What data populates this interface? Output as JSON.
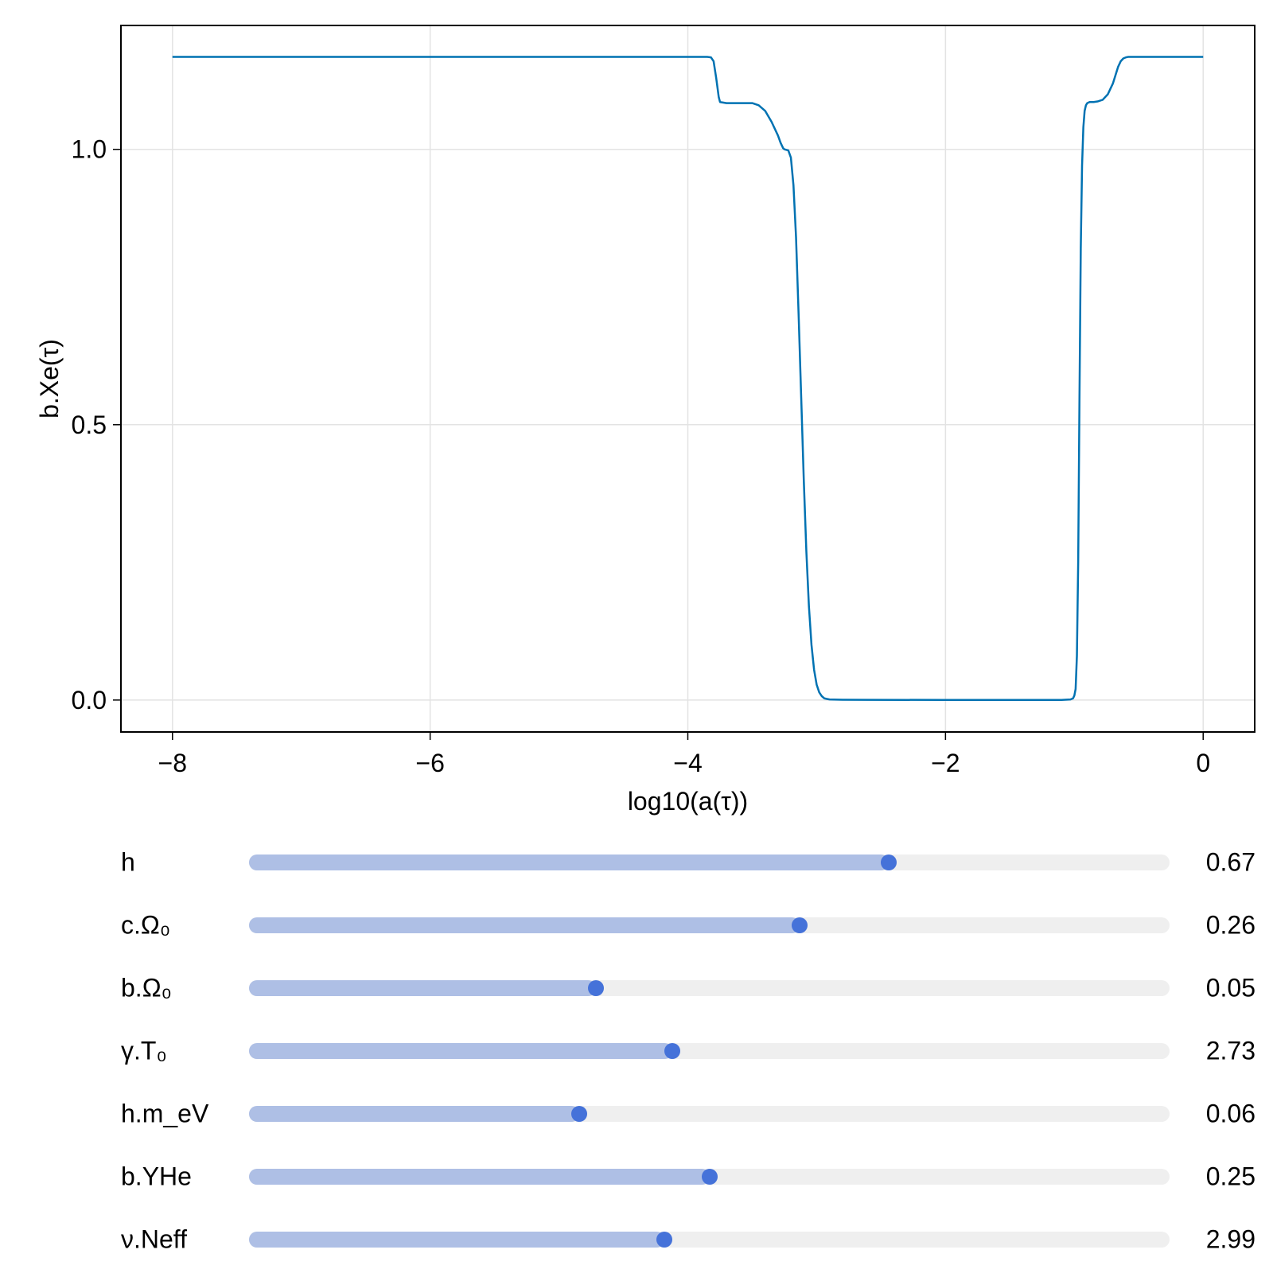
{
  "chart_data": {
    "type": "line",
    "xlabel": "log10(a(τ))",
    "ylabel": "b.Xe(τ)",
    "xlim": [
      -8.4,
      0.4
    ],
    "ylim": [
      -0.058,
      1.225
    ],
    "x_ticks": [
      -8,
      -6,
      -4,
      -2,
      0
    ],
    "x_tick_labels": [
      "−8",
      "−6",
      "−4",
      "−2",
      "0"
    ],
    "y_ticks": [
      0.0,
      0.5,
      1.0
    ],
    "y_tick_labels": [
      "0.0",
      "0.5",
      "1.0"
    ],
    "grid": true,
    "line_color": "#0072b2",
    "series": [
      {
        "x": [
          -8.0,
          -6.0,
          -4.0,
          -3.85,
          -3.82,
          -3.8,
          -3.78,
          -3.76,
          -3.75,
          -3.7,
          -3.6,
          -3.5,
          -3.45,
          -3.4,
          -3.35,
          -3.3,
          -3.28,
          -3.26,
          -3.25,
          -3.22,
          -3.2,
          -3.18,
          -3.16,
          -3.14,
          -3.12,
          -3.1,
          -3.08,
          -3.06,
          -3.04,
          -3.02,
          -3.0,
          -2.98,
          -2.96,
          -2.94,
          -2.92,
          -2.9,
          -2.8,
          -2.6,
          -2.0,
          -1.5,
          -1.1,
          -1.03,
          -1.01,
          -1.0,
          -0.99,
          -0.98,
          -0.97,
          -0.96,
          -0.95,
          -0.94,
          -0.93,
          -0.92,
          -0.91,
          -0.9,
          -0.88,
          -0.85,
          -0.82,
          -0.78,
          -0.74,
          -0.72,
          -0.7,
          -0.68,
          -0.66,
          -0.64,
          -0.62,
          -0.6,
          -0.58,
          -0.55,
          -0.5,
          -0.4,
          -0.2,
          0.0
        ],
        "y": [
          1.168,
          1.168,
          1.168,
          1.168,
          1.167,
          1.16,
          1.13,
          1.095,
          1.086,
          1.084,
          1.084,
          1.084,
          1.08,
          1.07,
          1.05,
          1.025,
          1.012,
          1.002,
          1.0,
          0.998,
          0.985,
          0.935,
          0.84,
          0.7,
          0.55,
          0.4,
          0.27,
          0.17,
          0.1,
          0.055,
          0.028,
          0.014,
          0.007,
          0.003,
          0.002,
          0.001,
          0.0005,
          0.0003,
          0.0002,
          0.0001,
          0.0001,
          0.001,
          0.003,
          0.008,
          0.02,
          0.08,
          0.25,
          0.55,
          0.82,
          0.97,
          1.04,
          1.07,
          1.08,
          1.084,
          1.086,
          1.086,
          1.087,
          1.09,
          1.1,
          1.11,
          1.12,
          1.135,
          1.15,
          1.16,
          1.165,
          1.167,
          1.168,
          1.168,
          1.168,
          1.168,
          1.168,
          1.168
        ]
      }
    ]
  },
  "sliders": [
    {
      "label": "h",
      "value": "0.67",
      "fraction": 0.695
    },
    {
      "label": "c.Ω₀",
      "value": "0.26",
      "fraction": 0.598
    },
    {
      "label": "b.Ω₀",
      "value": "0.05",
      "fraction": 0.377
    },
    {
      "label": "γ.T₀",
      "value": "2.73",
      "fraction": 0.46
    },
    {
      "label": "h.m_eV",
      "value": "0.06",
      "fraction": 0.359
    },
    {
      "label": "b.YHe",
      "value": "0.25",
      "fraction": 0.5
    },
    {
      "label": "ν.Neff",
      "value": "2.99",
      "fraction": 0.451
    }
  ]
}
